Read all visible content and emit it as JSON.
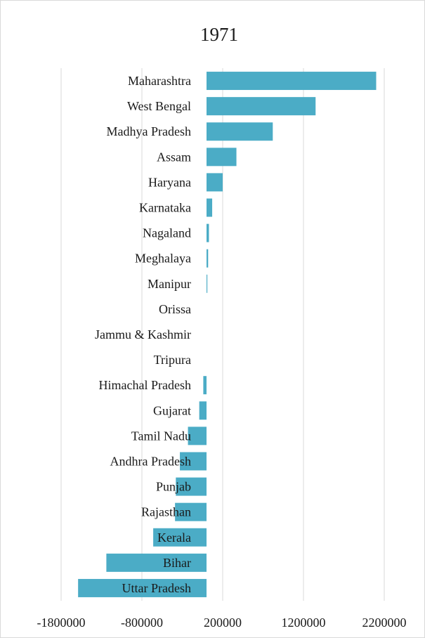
{
  "chart_data": {
    "type": "bar",
    "orientation": "horizontal",
    "title": "1971",
    "xlabel": "",
    "ylabel": "",
    "categories": [
      "Maharashtra",
      "West Bengal",
      "Madhya Pradesh",
      "Assam",
      "Haryana",
      "Karnataka",
      "Nagaland",
      "Meghalaya",
      "Manipur",
      "Orissa",
      "Jammu & Kashmir",
      "Tripura",
      "Himachal Pradesh",
      "Gujarat",
      "Tamil Nadu",
      "Andhra Pradesh",
      "Punjab",
      "Rajasthan",
      "Kerala",
      "Bihar",
      "Uttar Pradesh"
    ],
    "values": [
      2100000,
      1350000,
      820000,
      370000,
      200000,
      70000,
      30000,
      20000,
      10000,
      0,
      0,
      0,
      -40000,
      -90000,
      -230000,
      -330000,
      -380000,
      -390000,
      -660000,
      -1240000,
      -1590000
    ],
    "xlim": [
      -1800000,
      2200000
    ],
    "xticks": [
      -1800000,
      -800000,
      200000,
      1200000,
      2200000
    ],
    "xtick_labels": [
      "-1800000",
      "-800000",
      "200000",
      "1200000",
      "2200000"
    ],
    "grid": true,
    "legend": "none",
    "colors": {
      "bar": "#4bacc6",
      "grid": "#d9d9d9",
      "frame": "#d9d9d9"
    }
  }
}
